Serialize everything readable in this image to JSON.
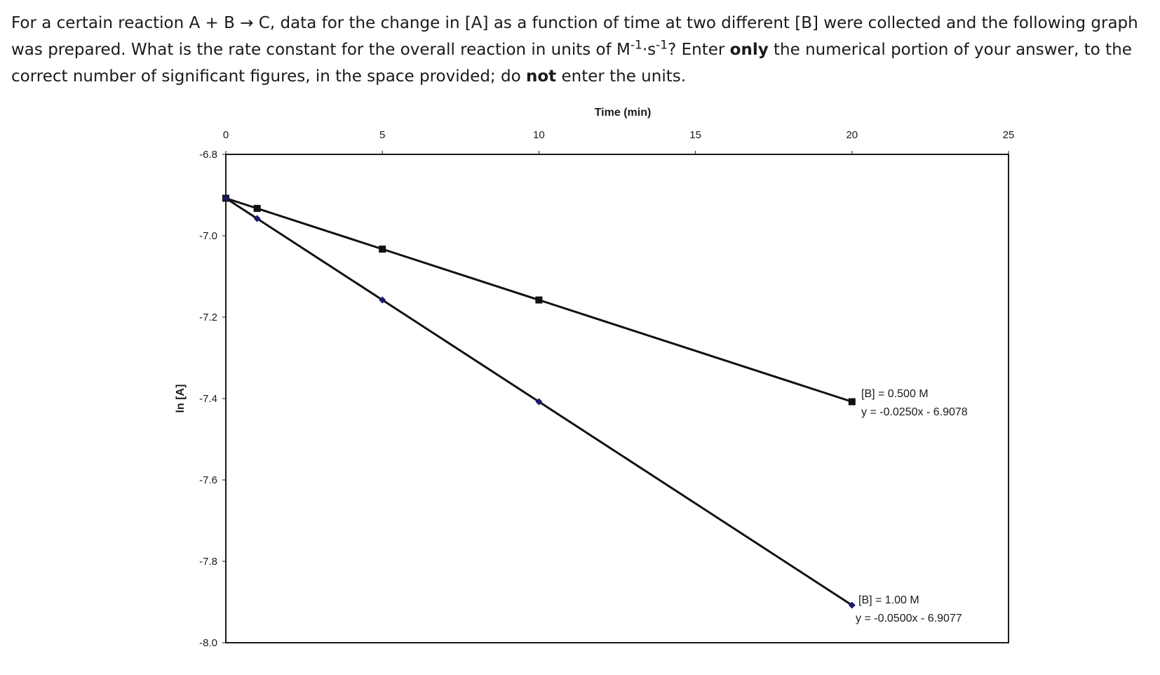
{
  "question": {
    "part1": "For a certain reaction A + B → C, data for the change in [A] as a function of time at two different [B] were collected and the following graph was prepared.  What is the rate constant for the overall reaction in units of M",
    "sup1": "-1",
    "part2": "·s",
    "sup2": "-1",
    "part3": "? Enter ",
    "bold1": "only",
    "part4": " the numerical portion of your answer, to the correct number of significant figures, in the space provided; do ",
    "bold2": "not",
    "part5": " enter the units."
  },
  "chart_data": {
    "type": "line",
    "xlabel": "Time (min)",
    "ylabel": "ln [A]",
    "xlim": [
      0,
      25
    ],
    "ylim": [
      -8.0,
      -6.8
    ],
    "x_axis_position": "top",
    "x_ticks": [
      0,
      5,
      10,
      15,
      20,
      25
    ],
    "y_ticks": [
      -6.8,
      -7.0,
      -7.2,
      -7.4,
      -7.6,
      -7.8,
      -8.0
    ],
    "x_tick_labels": [
      "0",
      "5",
      "10",
      "15",
      "20",
      "25"
    ],
    "y_tick_labels": [
      "-6.8",
      "-7.0",
      "-7.2",
      "-7.4",
      "-7.6",
      "-7.8",
      "-8.0"
    ],
    "grid": false,
    "series": [
      {
        "label": "[B] = 0.500 M",
        "equation": "y = -0.0250x - 6.9078",
        "marker": "square",
        "color": "#111111",
        "x": [
          0,
          1,
          5,
          10,
          20
        ],
        "y": [
          -6.9078,
          -6.9328,
          -7.0328,
          -7.1578,
          -7.4078
        ]
      },
      {
        "label": "[B] = 1.00 M",
        "equation": "y = -0.0500x - 6.9077",
        "marker": "diamond",
        "color": "#1a1a6e",
        "x": [
          0,
          1,
          5,
          10,
          20
        ],
        "y": [
          -6.9077,
          -6.9577,
          -7.1577,
          -7.4077,
          -7.9077
        ]
      }
    ]
  }
}
